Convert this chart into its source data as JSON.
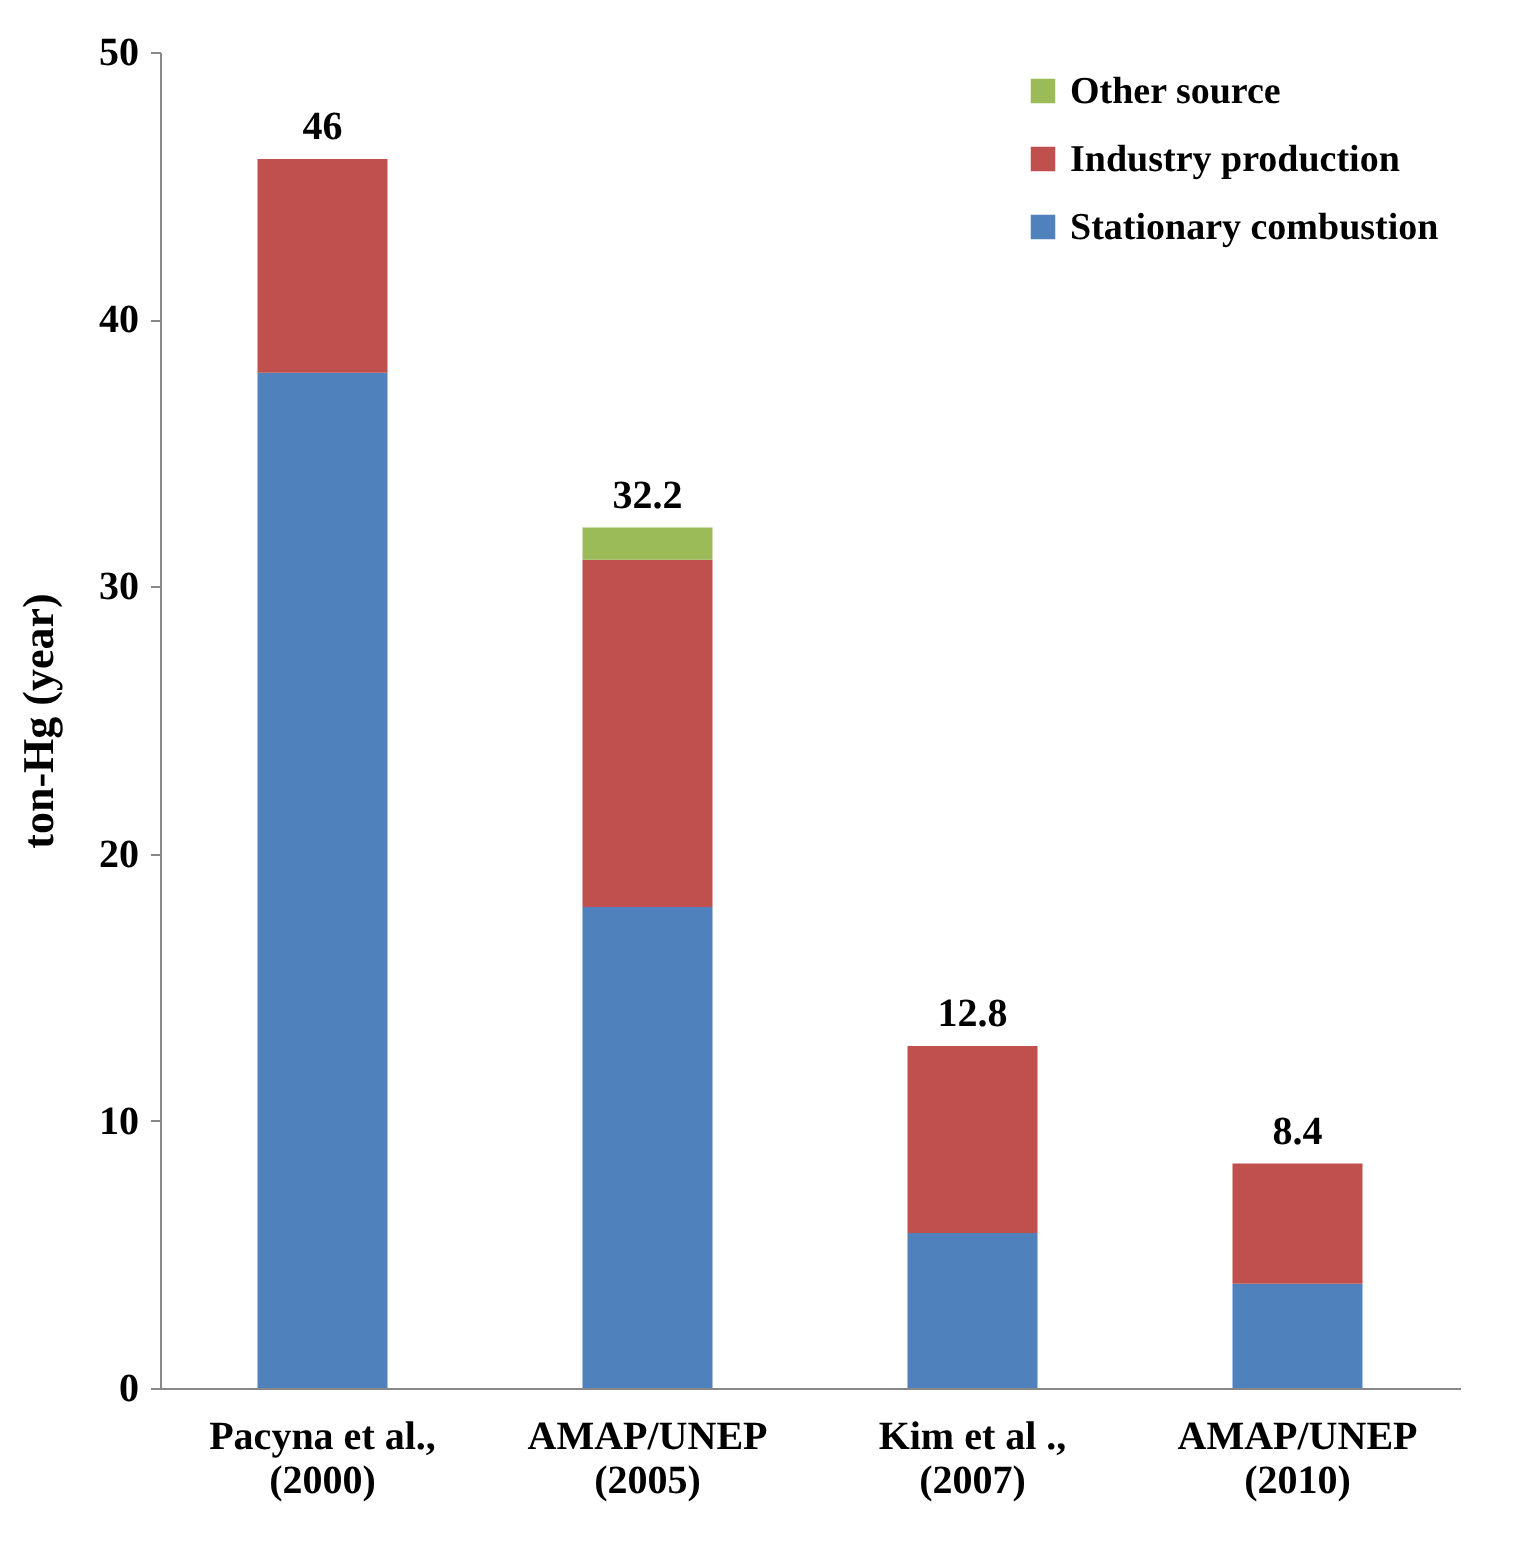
{
  "chart_data": {
    "type": "bar",
    "stacked": true,
    "ylabel": "ton-Hg (year)",
    "categories": [
      "Pacyna et al.,\n(2000)",
      "AMAP/UNEP\n(2005)",
      "Kim et al .,\n(2007)",
      "AMAP/UNEP\n(2010)"
    ],
    "series": [
      {
        "name": "Stationary combustion",
        "color": "#4f81bd",
        "values": [
          38,
          18,
          5.8,
          3.9
        ]
      },
      {
        "name": "Industry production",
        "color": "#c0504d",
        "values": [
          8,
          13,
          7.0,
          4.5
        ]
      },
      {
        "name": "Other source",
        "color": "#9bbb59",
        "values": [
          null,
          1.2,
          null,
          null
        ]
      }
    ],
    "totals": [
      "46",
      "32.2",
      "12.8",
      "8.4"
    ],
    "ylim": [
      0,
      50
    ],
    "yticks": [
      0,
      10,
      20,
      30,
      40,
      50
    ],
    "grid": false,
    "legend": "top right"
  }
}
